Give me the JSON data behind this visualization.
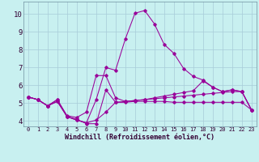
{
  "xlabel": "Windchill (Refroidissement éolien,°C)",
  "background_color": "#c8f0f0",
  "grid_color": "#a8ccd8",
  "line_color": "#990099",
  "xlim": [
    -0.5,
    23.5
  ],
  "ylim": [
    3.7,
    10.7
  ],
  "yticks": [
    4,
    5,
    6,
    7,
    8,
    9,
    10
  ],
  "xticks": [
    0,
    1,
    2,
    3,
    4,
    5,
    6,
    7,
    8,
    9,
    10,
    11,
    12,
    13,
    14,
    15,
    16,
    17,
    18,
    19,
    20,
    21,
    22,
    23
  ],
  "series": [
    {
      "x": [
        0,
        1,
        2,
        3,
        4,
        5,
        6,
        7,
        8,
        9,
        10,
        11,
        12,
        13,
        14,
        15,
        16,
        17,
        18,
        19,
        20,
        21,
        22,
        23
      ],
      "y": [
        5.35,
        5.2,
        4.85,
        5.2,
        4.25,
        4.1,
        3.85,
        3.85,
        5.75,
        5.05,
        5.05,
        5.1,
        5.1,
        5.1,
        5.1,
        5.05,
        5.05,
        5.05,
        5.05,
        5.05,
        5.05,
        5.05,
        5.05,
        4.62
      ]
    },
    {
      "x": [
        0,
        1,
        2,
        3,
        4,
        5,
        6,
        7,
        8,
        9,
        10,
        11,
        12,
        13,
        14,
        15,
        16,
        17,
        18,
        19,
        20,
        21,
        22,
        23
      ],
      "y": [
        5.35,
        5.2,
        4.85,
        5.1,
        4.25,
        4.05,
        3.9,
        4.05,
        4.5,
        5.05,
        5.1,
        5.15,
        5.2,
        5.25,
        5.3,
        5.35,
        5.4,
        5.45,
        5.5,
        5.55,
        5.6,
        5.65,
        5.65,
        4.62
      ]
    },
    {
      "x": [
        0,
        1,
        2,
        3,
        4,
        5,
        6,
        7,
        8,
        9,
        10,
        11,
        12,
        13,
        14,
        15,
        16,
        17,
        18,
        19,
        20,
        21,
        22,
        23
      ],
      "y": [
        5.35,
        5.2,
        4.85,
        5.1,
        4.25,
        4.05,
        3.9,
        5.2,
        7.0,
        6.85,
        8.6,
        10.05,
        10.2,
        9.45,
        8.3,
        7.8,
        6.95,
        6.5,
        6.3,
        5.9,
        5.65,
        5.75,
        5.65,
        4.62
      ]
    },
    {
      "x": [
        0,
        1,
        2,
        3,
        4,
        5,
        6,
        7,
        8,
        9,
        10,
        11,
        12,
        13,
        14,
        15,
        16,
        17,
        18,
        19,
        20,
        21,
        22,
        23
      ],
      "y": [
        5.35,
        5.2,
        4.85,
        5.2,
        4.3,
        4.2,
        4.5,
        6.55,
        6.55,
        5.3,
        5.1,
        5.15,
        5.2,
        5.3,
        5.4,
        5.5,
        5.6,
        5.7,
        6.25,
        5.9,
        5.65,
        5.75,
        5.65,
        4.62
      ]
    }
  ]
}
